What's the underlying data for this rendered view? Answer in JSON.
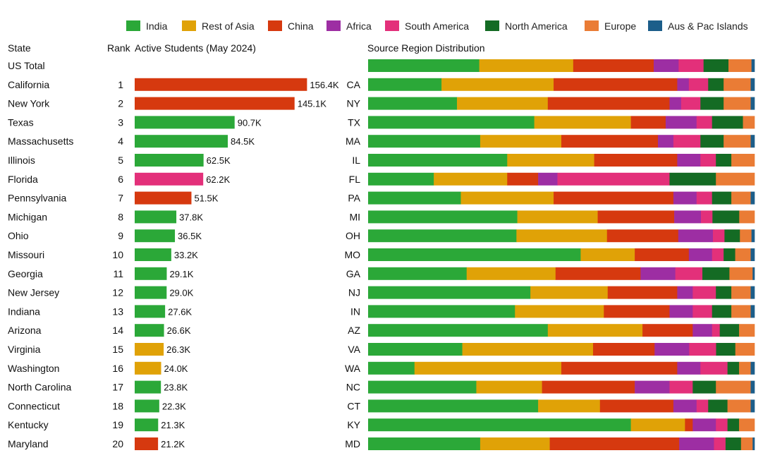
{
  "chart_data": {
    "type": "bar",
    "legend": {
      "placement": "top",
      "entries": [
        {
          "name": "India",
          "color": "#2ba838"
        },
        {
          "name": "Rest of Asia",
          "color": "#e0a207"
        },
        {
          "name": "China",
          "color": "#d6390f"
        },
        {
          "name": "Africa",
          "color": "#9d2ea3"
        },
        {
          "name": "South America",
          "color": "#e3307a"
        },
        {
          "name": "North America",
          "color": "#146b24"
        },
        {
          "name": "Europe",
          "color": "#ea7c35"
        },
        {
          "name": "Aus & Pac Islands",
          "color": "#1c5e8a"
        }
      ]
    },
    "headers": {
      "state": "State",
      "rank": "Rank",
      "students": "Active Students (May 2024)",
      "distribution": "Source Region Distribution"
    },
    "us_total_label": "US Total",
    "us_total_distribution": [
      29,
      24.5,
      21,
      6.5,
      6.5,
      6.5,
      6,
      0.8
    ],
    "students_xlim": [
      0,
      160
    ],
    "rows": [
      {
        "state": "California",
        "rank": "1",
        "value": 156.4,
        "label": "156.4K",
        "color": "China",
        "abbr": "CA",
        "dist": [
          19,
          29,
          32,
          3,
          5,
          4,
          7,
          1
        ]
      },
      {
        "state": "New York",
        "rank": "2",
        "value": 145.1,
        "label": "145.1K",
        "color": "China",
        "abbr": "NY",
        "dist": [
          23,
          23.5,
          31.5,
          3,
          5,
          6,
          7,
          1
        ]
      },
      {
        "state": "Texas",
        "rank": "3",
        "value": 90.7,
        "label": "90.7K",
        "color": "India",
        "abbr": "TX",
        "dist": [
          43,
          25,
          9,
          8,
          4,
          8,
          3,
          0
        ]
      },
      {
        "state": "Massachusetts",
        "rank": "4",
        "value": 84.5,
        "label": "84.5K",
        "color": "India",
        "abbr": "MA",
        "dist": [
          29,
          21,
          25,
          4,
          7,
          6,
          7,
          1
        ]
      },
      {
        "state": "Illinois",
        "rank": "5",
        "value": 62.5,
        "label": "62.5K",
        "color": "India",
        "abbr": "IL",
        "dist": [
          36,
          22.5,
          21.5,
          6,
          4,
          4,
          6,
          0
        ]
      },
      {
        "state": "Florida",
        "rank": "6",
        "value": 62.2,
        "label": "62.2K",
        "color": "South America",
        "abbr": "FL",
        "dist": [
          17,
          19,
          8,
          5,
          29,
          12,
          10,
          0
        ]
      },
      {
        "state": "Pennsylvania",
        "rank": "7",
        "value": 51.5,
        "label": "51.5K",
        "color": "China",
        "abbr": "PA",
        "dist": [
          24,
          24,
          31,
          6,
          4,
          5,
          5,
          1
        ]
      },
      {
        "state": "Michigan",
        "rank": "8",
        "value": 37.8,
        "label": "37.8K",
        "color": "India",
        "abbr": "MI",
        "dist": [
          39,
          21,
          20,
          7,
          3,
          7,
          4,
          0
        ]
      },
      {
        "state": "Ohio",
        "rank": "9",
        "value": 36.5,
        "label": "36.5K",
        "color": "India",
        "abbr": "OH",
        "dist": [
          38.5,
          23.5,
          18.5,
          9,
          3,
          4,
          3,
          0.8
        ]
      },
      {
        "state": "Missouri",
        "rank": "10",
        "value": 33.2,
        "label": "33.2K",
        "color": "India",
        "abbr": "MO",
        "dist": [
          55,
          14,
          14,
          6,
          3,
          3,
          4,
          1
        ]
      },
      {
        "state": "Georgia",
        "rank": "11",
        "value": 29.1,
        "label": "29.1K",
        "color": "India",
        "abbr": "GA",
        "dist": [
          25.5,
          23,
          22,
          9,
          7,
          7,
          6,
          0.5
        ]
      },
      {
        "state": "New Jersey",
        "rank": "12",
        "value": 29.0,
        "label": "29.0K",
        "color": "India",
        "abbr": "NJ",
        "dist": [
          42,
          20,
          18,
          4,
          6,
          4,
          5,
          1
        ]
      },
      {
        "state": "Indiana",
        "rank": "13",
        "value": 27.6,
        "label": "27.6K",
        "color": "India",
        "abbr": "IN",
        "dist": [
          38,
          23,
          17,
          6,
          5,
          5,
          5,
          1
        ]
      },
      {
        "state": "Arizona",
        "rank": "14",
        "value": 26.6,
        "label": "26.6K",
        "color": "India",
        "abbr": "AZ",
        "dist": [
          46.5,
          24.5,
          13,
          5,
          2,
          5,
          4,
          0
        ]
      },
      {
        "state": "Virginia",
        "rank": "15",
        "value": 26.3,
        "label": "26.3K",
        "color": "Rest of Asia",
        "abbr": "VA",
        "dist": [
          24.5,
          34,
          16,
          9,
          7,
          5,
          5,
          0
        ]
      },
      {
        "state": "Washington",
        "rank": "16",
        "value": 24.0,
        "label": "24.0K",
        "color": "Rest of Asia",
        "abbr": "WA",
        "dist": [
          12,
          38,
          30,
          6,
          7,
          3,
          3,
          1
        ]
      },
      {
        "state": "North Carolina",
        "rank": "17",
        "value": 23.8,
        "label": "23.8K",
        "color": "India",
        "abbr": "NC",
        "dist": [
          28,
          17,
          24,
          9,
          6,
          6,
          9,
          1
        ]
      },
      {
        "state": "Connecticut",
        "rank": "18",
        "value": 22.3,
        "label": "22.3K",
        "color": "India",
        "abbr": "CT",
        "dist": [
          44,
          16,
          19,
          6,
          3,
          5,
          6,
          1
        ]
      },
      {
        "state": "Kentucky",
        "rank": "19",
        "value": 21.3,
        "label": "21.3K",
        "color": "India",
        "abbr": "KY",
        "dist": [
          68,
          14,
          2,
          6,
          3,
          3,
          4,
          0
        ]
      },
      {
        "state": "Maryland",
        "rank": "20",
        "value": 21.2,
        "label": "21.2K",
        "color": "China",
        "abbr": "MD",
        "dist": [
          29,
          18,
          33.5,
          9,
          3,
          4,
          3,
          0.5
        ]
      }
    ]
  }
}
